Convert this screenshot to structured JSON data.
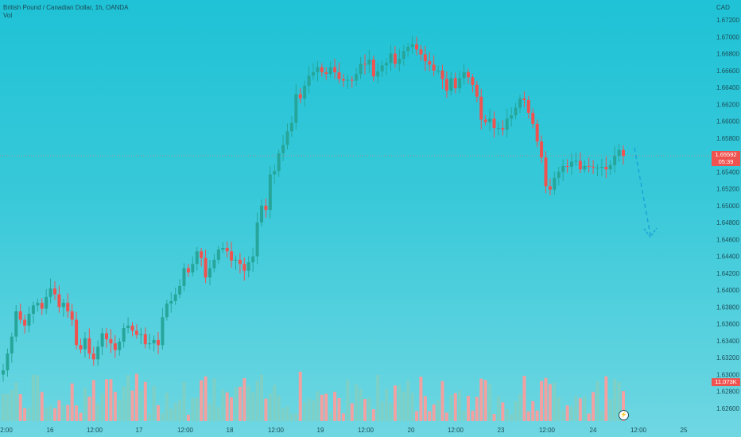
{
  "header": {
    "symbol": "British Pound / Canadian Dollar, 1h, OANDA",
    "vol": "Vol",
    "currency": "CAD"
  },
  "price_tag": {
    "price": "1.65592",
    "countdown": "05:39"
  },
  "volume_tag": {
    "value": "11.073K"
  },
  "colors": {
    "up": "#26a69a",
    "down": "#ef5350",
    "vol_up": "#7ed0c6",
    "vol_down": "#f3a0a0",
    "projection": "#1aa3d6"
  },
  "chart_data": {
    "type": "candlestick",
    "y_axis": {
      "ticks": [
        "1.67200",
        "1.67000",
        "1.66800",
        "1.66600",
        "1.66400",
        "1.66200",
        "1.66000",
        "1.65800",
        "1.65600",
        "1.65400",
        "1.65200",
        "1.65000",
        "1.64800",
        "1.64600",
        "1.64400",
        "1.64200",
        "1.64000",
        "1.63800",
        "1.63600",
        "1.63400",
        "1.63200",
        "1.63000",
        "1.62800",
        "1.62600"
      ],
      "range": [
        1.6253,
        1.6735
      ]
    },
    "x_axis": {
      "ticks": [
        "2:00",
        "16",
        "12:00",
        "17",
        "12:00",
        "18",
        "12:00",
        "19",
        "12:00",
        "20",
        "12:00",
        "23",
        "12:00",
        "24",
        "12:00",
        "25"
      ]
    },
    "projection": "dashed arrow pointing down",
    "closes": [
      1.6305,
      1.6325,
      1.6345,
      1.6375,
      1.6365,
      1.6358,
      1.6372,
      1.6382,
      1.6385,
      1.6378,
      1.6392,
      1.6402,
      1.6395,
      1.638,
      1.6385,
      1.6375,
      1.6365,
      1.6335,
      1.633,
      1.6343,
      1.6325,
      1.6318,
      1.6333,
      1.6349,
      1.6342,
      1.6337,
      1.6329,
      1.6339,
      1.6355,
      1.6358,
      1.6352,
      1.6347,
      1.6348,
      1.6336,
      1.6337,
      1.6341,
      1.6335,
      1.6368,
      1.6384,
      1.6387,
      1.6395,
      1.6405,
      1.6426,
      1.6421,
      1.6431,
      1.6446,
      1.6438,
      1.6415,
      1.6426,
      1.6436,
      1.6448,
      1.645,
      1.6446,
      1.6435,
      1.6436,
      1.6431,
      1.6423,
      1.6433,
      1.644,
      1.648,
      1.65,
      1.6495,
      1.6537,
      1.6541,
      1.6562,
      1.6572,
      1.6588,
      1.6598,
      1.6632,
      1.6627,
      1.6642,
      1.6654,
      1.6658,
      1.6664,
      1.6658,
      1.6656,
      1.6664,
      1.6658,
      1.665,
      1.6648,
      1.6649,
      1.6648,
      1.6656,
      1.6668,
      1.6667,
      1.6673,
      1.6653,
      1.6659,
      1.6666,
      1.6669,
      1.668,
      1.6668,
      1.6674,
      1.6683,
      1.6688,
      1.6691,
      1.6685,
      1.6679,
      1.6671,
      1.6667,
      1.666,
      1.666,
      1.665,
      1.6636,
      1.6651,
      1.6639,
      1.6651,
      1.6658,
      1.6652,
      1.6643,
      1.6629,
      1.6602,
      1.6599,
      1.6603,
      1.6592,
      1.6592,
      1.659,
      1.6603,
      1.6607,
      1.6616,
      1.6627,
      1.6625,
      1.661,
      1.6597,
      1.6576,
      1.6557,
      1.6523,
      1.6519,
      1.6533,
      1.654,
      1.6547,
      1.6546,
      1.6552,
      1.6553,
      1.6543,
      1.6547,
      1.6546,
      1.6545,
      1.6545,
      1.6546,
      1.6543,
      1.6548,
      1.6559,
      1.6566,
      1.6559
    ]
  }
}
